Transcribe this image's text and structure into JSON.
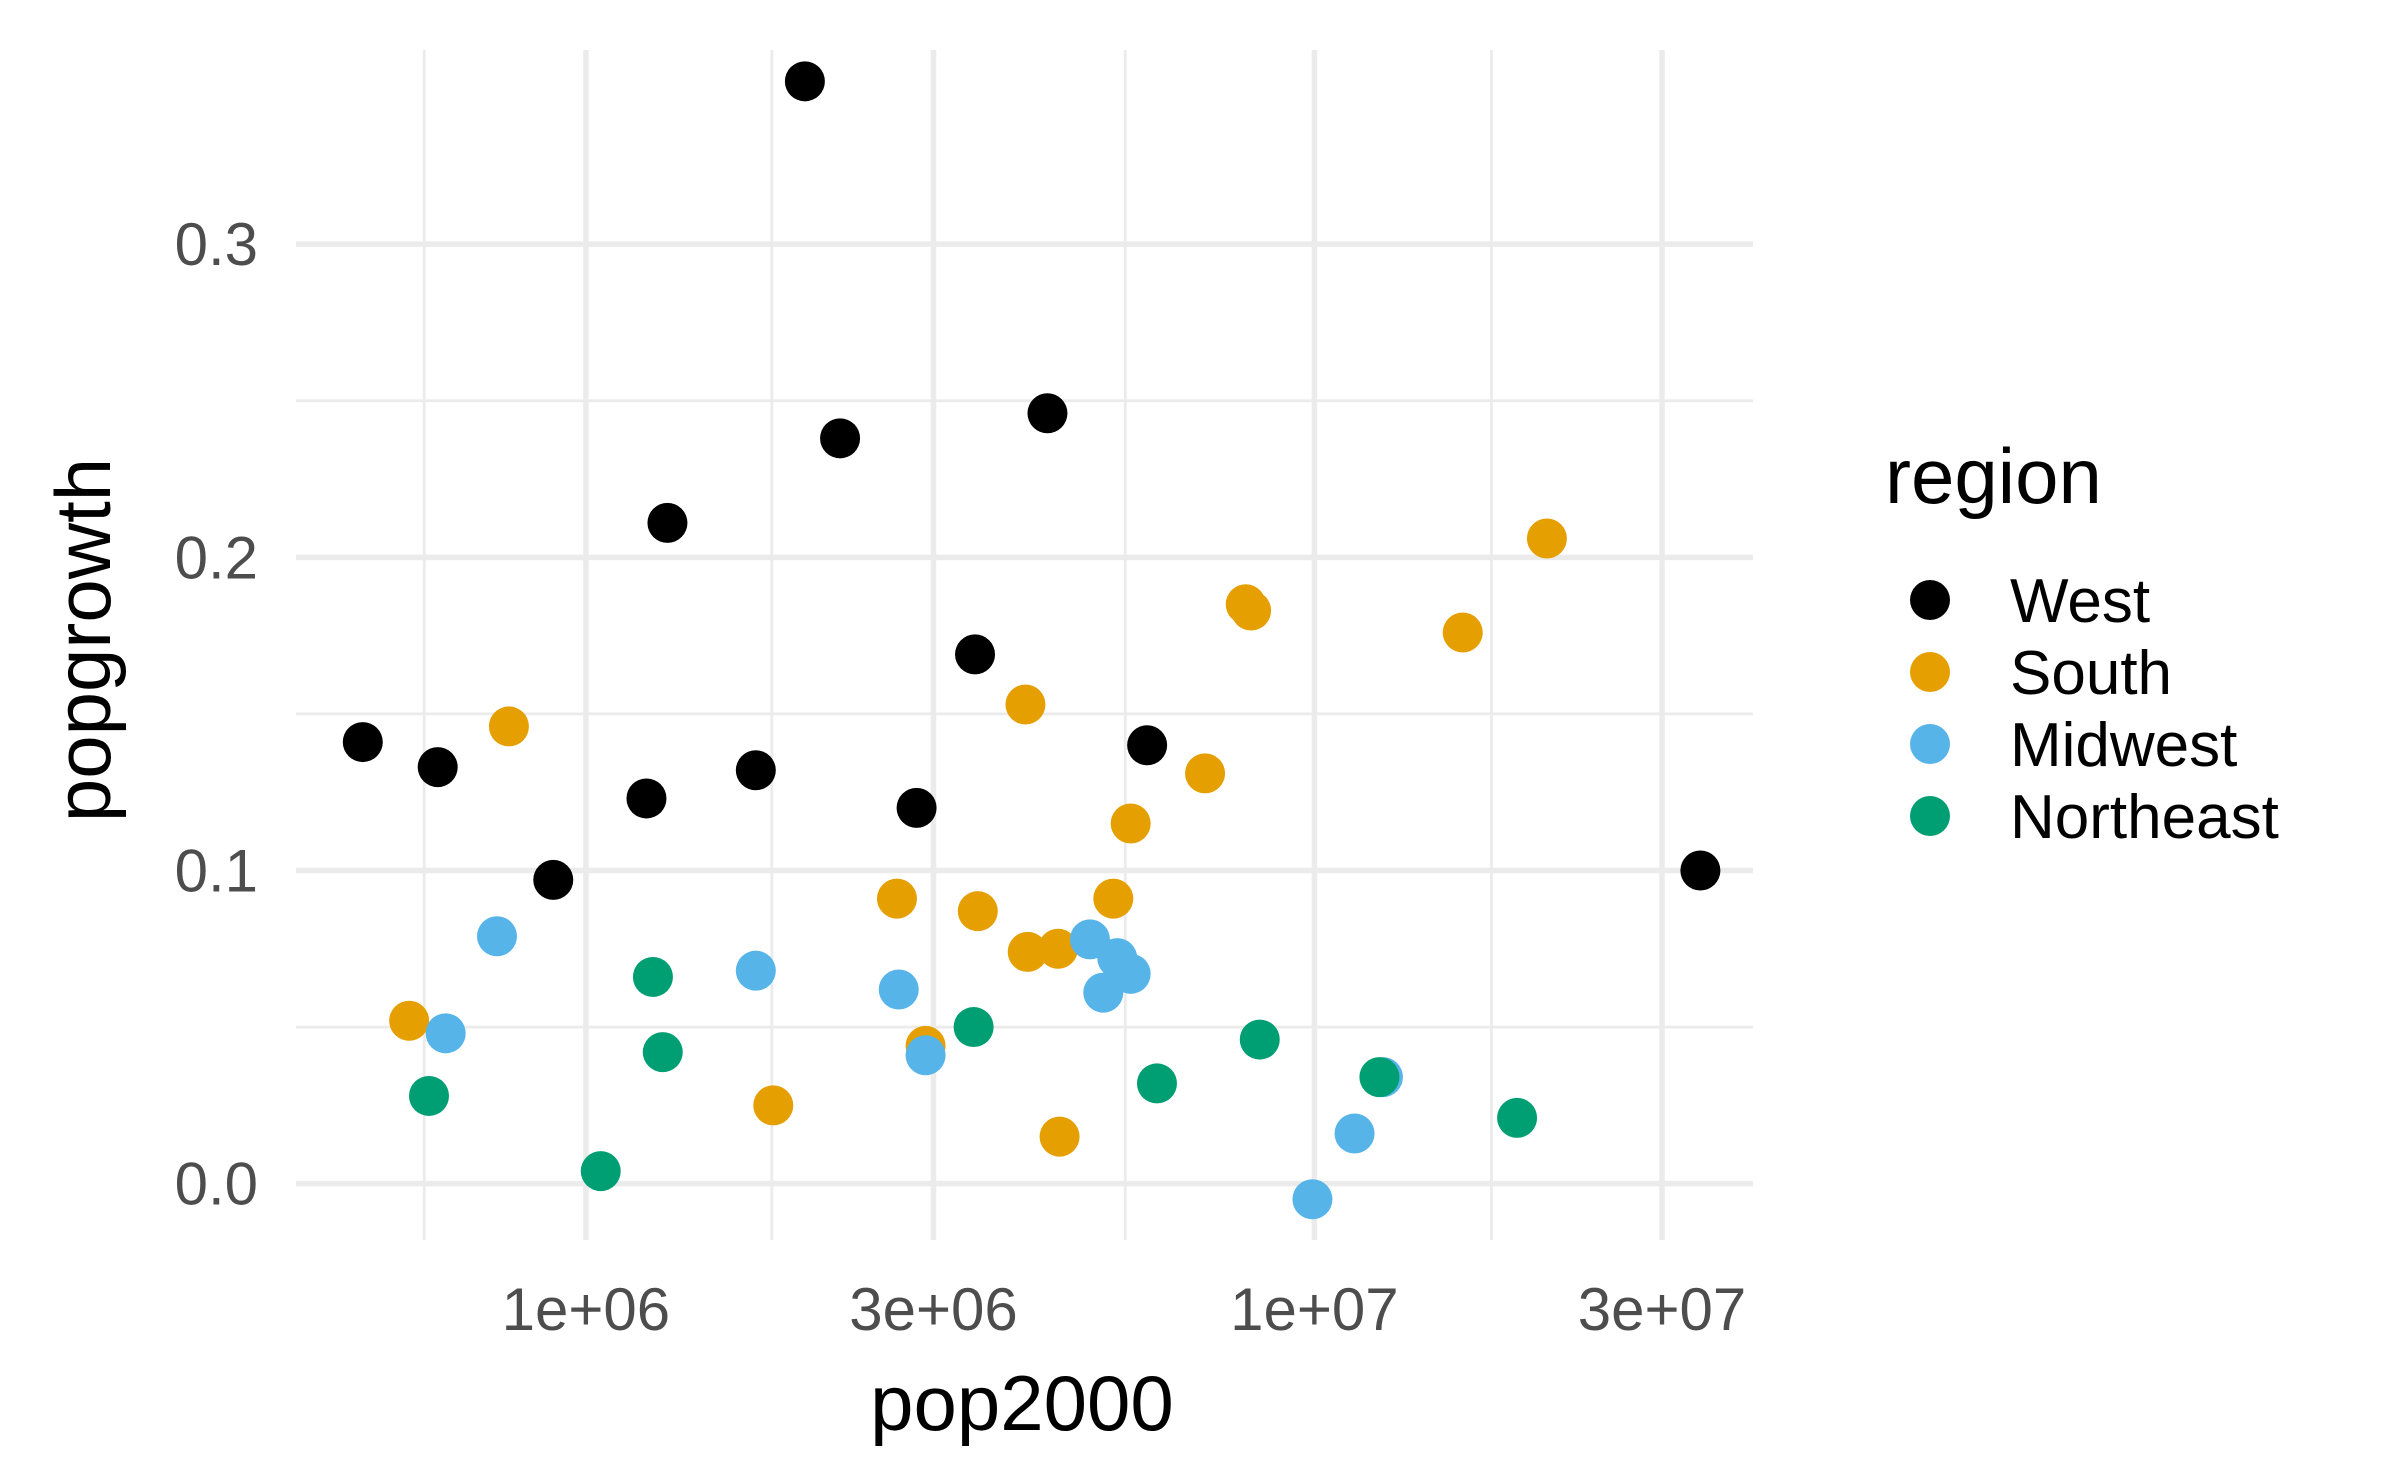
{
  "chart_data": {
    "type": "scatter",
    "xlabel": "pop2000",
    "ylabel": "popgrowth",
    "x_scale": "log10",
    "xlim": [
      400000,
      40000000
    ],
    "ylim": [
      -0.018,
      0.362
    ],
    "x_ticks": [
      {
        "value": 1000000,
        "label": "1e+06"
      },
      {
        "value": 3000000,
        "label": "3e+06"
      },
      {
        "value": 10000000,
        "label": "1e+07"
      },
      {
        "value": 30000000,
        "label": "3e+07"
      }
    ],
    "x_minor_ticks": [
      600000,
      1800000,
      5500000,
      17500000
    ],
    "y_ticks": [
      {
        "value": 0.0,
        "label": "0.0"
      },
      {
        "value": 0.1,
        "label": "0.1"
      },
      {
        "value": 0.2,
        "label": "0.2"
      },
      {
        "value": 0.3,
        "label": "0.3"
      }
    ],
    "y_minor_ticks": [
      0.05,
      0.15,
      0.25
    ],
    "grid": true,
    "legend": {
      "title": "region",
      "position": "right"
    },
    "series": [
      {
        "name": "West",
        "color": "#000000",
        "points": [
          [
            494000,
            0.141
          ],
          [
            626000,
            0.133
          ],
          [
            902000,
            0.097
          ],
          [
            1211000,
            0.123
          ],
          [
            1294000,
            0.211
          ],
          [
            1711000,
            0.132
          ],
          [
            1998000,
            0.352
          ],
          [
            2233000,
            0.238
          ],
          [
            2844000,
            0.12
          ],
          [
            3421000,
            0.169
          ],
          [
            4301000,
            0.246
          ],
          [
            5894000,
            0.14
          ],
          [
            33871000,
            0.1
          ]
        ]
      },
      {
        "name": "South",
        "color": "#E69F00",
        "points": [
          [
            572000,
            0.052
          ],
          [
            784000,
            0.146
          ],
          [
            1808000,
            0.025
          ],
          [
            2673000,
            0.091
          ],
          [
            2926000,
            0.044
          ],
          [
            3451000,
            0.087
          ],
          [
            4012000,
            0.153
          ],
          [
            4041000,
            0.074
          ],
          [
            4447000,
            0.075
          ],
          [
            4469000,
            0.015
          ],
          [
            5296000,
            0.091
          ],
          [
            5595000,
            0.115
          ],
          [
            7078000,
            0.131
          ],
          [
            8049000,
            0.185
          ],
          [
            8186000,
            0.183
          ],
          [
            15982000,
            0.176
          ],
          [
            20852000,
            0.206
          ]
        ]
      },
      {
        "name": "Midwest",
        "color": "#56B4E9",
        "points": [
          [
            642000,
            0.048
          ],
          [
            755000,
            0.079
          ],
          [
            1711000,
            0.068
          ],
          [
            2688000,
            0.062
          ],
          [
            2926000,
            0.041
          ],
          [
            4919000,
            0.078
          ],
          [
            5131000,
            0.061
          ],
          [
            5363000,
            0.072
          ],
          [
            5595000,
            0.067
          ],
          [
            9938000,
            -0.005
          ],
          [
            11353000,
            0.016
          ],
          [
            12419000,
            0.034
          ]
        ]
      },
      {
        "name": "Northeast",
        "color": "#009E73",
        "points": [
          [
            609000,
            0.028
          ],
          [
            1048000,
            0.004
          ],
          [
            1236000,
            0.066
          ],
          [
            1275000,
            0.042
          ],
          [
            3406000,
            0.05
          ],
          [
            6080000,
            0.032
          ],
          [
            8414000,
            0.046
          ],
          [
            12281000,
            0.034
          ],
          [
            18976000,
            0.021
          ]
        ]
      }
    ]
  }
}
